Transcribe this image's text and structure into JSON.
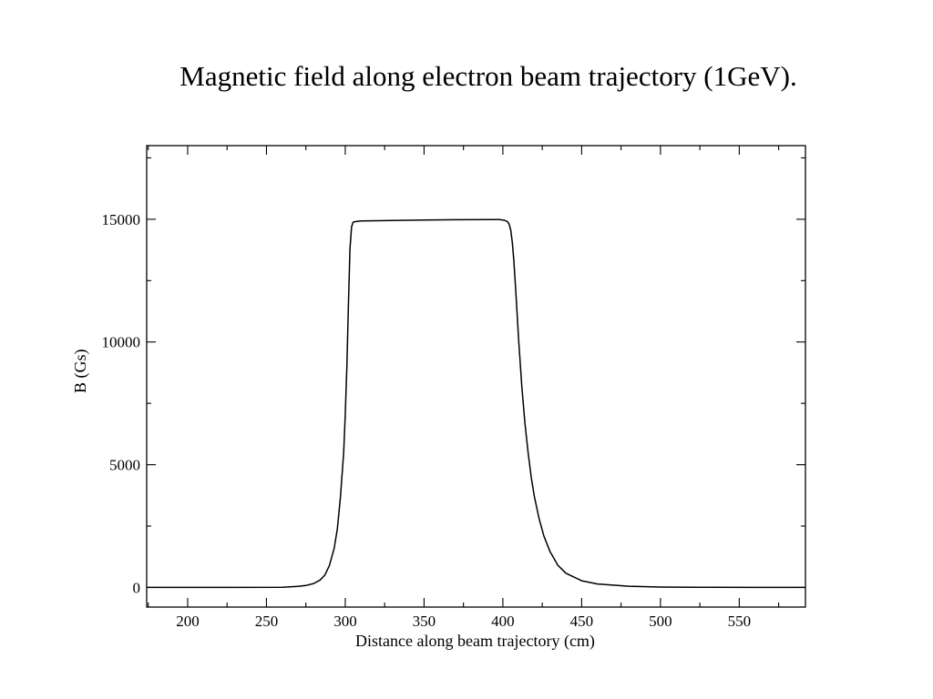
{
  "chart_data": {
    "type": "line",
    "title": "Magnetic field along electron beam trajectory (1GeV).",
    "xlabel": "Distance along beam trajectory (cm)",
    "ylabel": "B (Gs)",
    "xlim": [
      174,
      592
    ],
    "ylim": [
      -800,
      18000
    ],
    "x_ticks": [
      200,
      250,
      300,
      350,
      400,
      450,
      500,
      550
    ],
    "y_ticks": [
      0,
      5000,
      10000,
      15000
    ],
    "x_minor_step": 25,
    "y_minor_step": 2500,
    "grid": false,
    "series": [
      {
        "x": [
          174,
          200,
          230,
          260,
          270,
          275,
          280,
          284,
          287,
          290,
          293,
          295,
          297,
          299,
          300,
          301,
          302,
          303,
          304,
          305,
          306,
          310,
          330,
          350,
          370,
          390,
          398,
          401,
          403,
          404,
          405,
          406,
          407,
          408,
          409,
          410,
          412,
          414,
          416,
          418,
          420,
          423,
          426,
          430,
          435,
          440,
          450,
          460,
          480,
          500,
          530,
          560,
          592
        ],
        "y": [
          0,
          0,
          0,
          10,
          40,
          80,
          160,
          300,
          500,
          900,
          1600,
          2400,
          3700,
          5500,
          7000,
          9000,
          11500,
          13800,
          14700,
          14880,
          14900,
          14930,
          14950,
          14970,
          14980,
          14985,
          14985,
          14960,
          14900,
          14800,
          14550,
          14050,
          13300,
          12300,
          11200,
          10100,
          8200,
          6700,
          5500,
          4500,
          3700,
          2800,
          2100,
          1450,
          900,
          580,
          270,
          140,
          50,
          15,
          3,
          0,
          0
        ]
      }
    ]
  }
}
